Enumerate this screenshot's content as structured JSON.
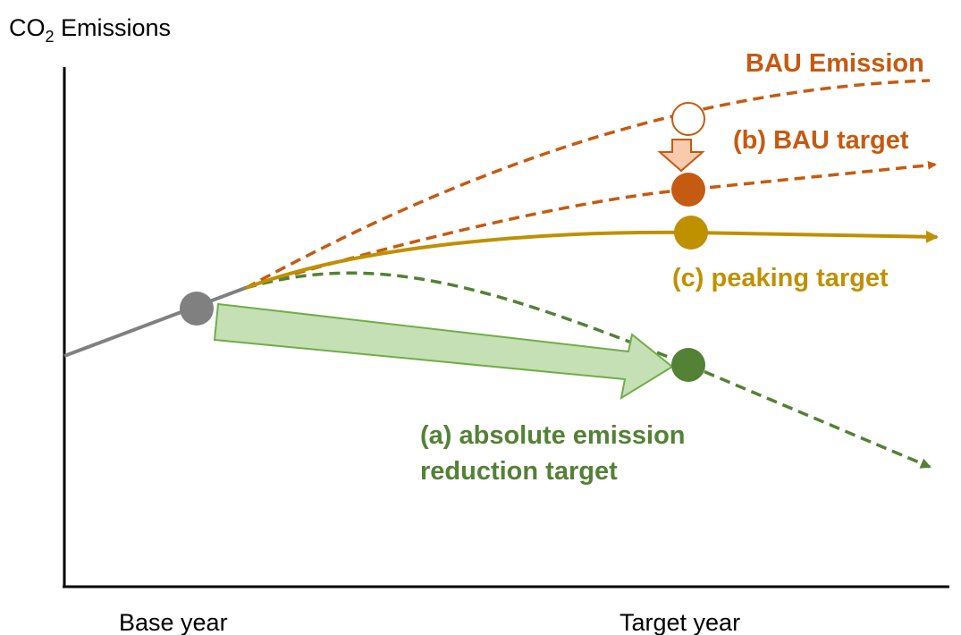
{
  "y_axis": {
    "label": "CO",
    "subscript": "2",
    "label_rest": " Emissions"
  },
  "x_axis": {
    "labels": [
      "Base year",
      "Target year"
    ]
  },
  "annotations": {
    "bau_emission": "BAU Emission",
    "bau_target": "(b) BAU target",
    "peaking_target": "(c) peaking target",
    "absolute_target": [
      "(a) absolute emission",
      "reduction target"
    ]
  }
}
